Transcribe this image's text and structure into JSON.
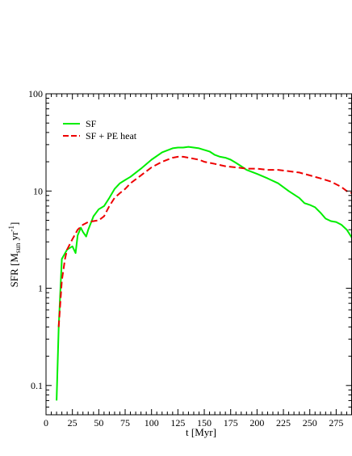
{
  "chart_data": {
    "type": "line",
    "xlabel": "t [Myr]",
    "ylabel": {
      "base": "SFR [M",
      "sub": "sun",
      "mid": " yr",
      "sup": "-1",
      "end": "]"
    },
    "xlim": [
      0,
      290
    ],
    "ylim": [
      0.05,
      100
    ],
    "yscale": "log",
    "x_ticks": [
      0,
      25,
      50,
      75,
      100,
      125,
      150,
      175,
      200,
      225,
      250,
      275
    ],
    "x_tick_labels": [
      "0",
      "25",
      "50",
      "75",
      "100",
      "125",
      "150",
      "175",
      "200",
      "225",
      "250",
      "275"
    ],
    "y_ticks": [
      0.1,
      1,
      10,
      100
    ],
    "y_tick_labels": [
      "0.1",
      "1",
      "10",
      "100"
    ],
    "grid": false,
    "legend_position": "top-left",
    "series": [
      {
        "name": "SF",
        "color": "#00ee00",
        "dash": "solid",
        "x": [
          10,
          12,
          15,
          20,
          25,
          28,
          30,
          33,
          35,
          38,
          40,
          45,
          50,
          55,
          60,
          65,
          70,
          75,
          80,
          90,
          100,
          110,
          120,
          125,
          130,
          135,
          140,
          145,
          150,
          155,
          160,
          165,
          170,
          175,
          180,
          185,
          190,
          200,
          210,
          220,
          230,
          240,
          245,
          250,
          255,
          260,
          265,
          270,
          275,
          280,
          285,
          290
        ],
        "y": [
          0.07,
          0.4,
          2.0,
          2.5,
          2.7,
          2.3,
          3.5,
          4.2,
          3.8,
          3.4,
          4.0,
          5.5,
          6.5,
          7.0,
          8.5,
          10.5,
          12.0,
          13.0,
          14.0,
          17.0,
          21.0,
          25.0,
          27.5,
          28.0,
          28.0,
          28.5,
          28.0,
          27.5,
          26.5,
          25.5,
          23.5,
          22.5,
          22.0,
          21.0,
          19.5,
          18.0,
          16.5,
          15.0,
          13.5,
          12.0,
          10.0,
          8.5,
          7.5,
          7.2,
          6.8,
          6.0,
          5.2,
          4.9,
          4.8,
          4.5,
          4.0,
          3.3
        ]
      },
      {
        "name": "SF + PE heat",
        "color": "#ee0000",
        "dash": "dashed",
        "x": [
          12,
          15,
          18,
          20,
          25,
          30,
          35,
          40,
          45,
          50,
          55,
          60,
          65,
          70,
          75,
          80,
          90,
          100,
          110,
          120,
          125,
          130,
          135,
          140,
          145,
          150,
          155,
          160,
          170,
          180,
          190,
          200,
          210,
          220,
          230,
          240,
          250,
          260,
          270,
          280,
          285,
          290
        ],
        "y": [
          0.4,
          1.2,
          2.0,
          2.5,
          3.2,
          4.0,
          4.5,
          4.8,
          4.9,
          5.0,
          5.5,
          7.0,
          8.5,
          9.5,
          10.5,
          12.0,
          14.5,
          17.5,
          20.0,
          22.0,
          22.5,
          22.5,
          22.0,
          21.5,
          21.0,
          20.0,
          19.5,
          19.0,
          18.0,
          17.5,
          17.0,
          17.0,
          16.5,
          16.5,
          16.0,
          15.5,
          14.5,
          13.5,
          12.5,
          11.0,
          10.0,
          9.5
        ]
      }
    ]
  }
}
